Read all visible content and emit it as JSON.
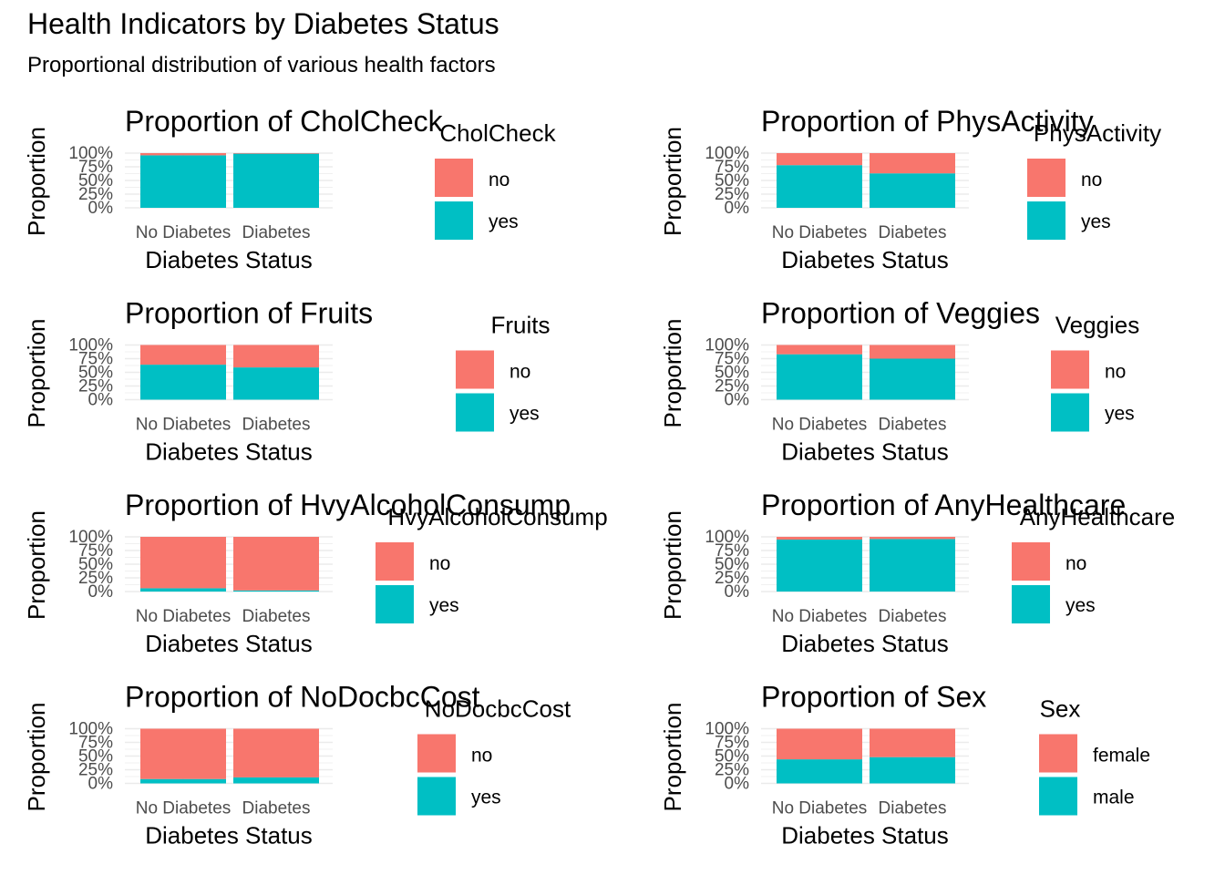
{
  "title": "Health Indicators by Diabetes Status",
  "subtitle": "Proportional distribution of various health factors",
  "colors": {
    "top": "#F8766D",
    "bottom": "#00BFC4",
    "grid": "#EBEBEB"
  },
  "chart_data": [
    {
      "type": "bar",
      "stacked": true,
      "title": "Proportion of CholCheck",
      "xlabel": "Diabetes Status",
      "ylabel": "Proportion",
      "categories": [
        "No Diabetes",
        "Diabetes"
      ],
      "yticks": [
        "0%",
        "25%",
        "50%",
        "75%",
        "100%"
      ],
      "ylim": [
        0,
        1
      ],
      "legend_title": "CholCheck",
      "series": [
        {
          "name": "yes",
          "values": [
            0.96,
            0.99
          ]
        },
        {
          "name": "no",
          "values": [
            0.04,
            0.01
          ]
        }
      ]
    },
    {
      "type": "bar",
      "stacked": true,
      "title": "Proportion of PhysActivity",
      "xlabel": "Diabetes Status",
      "ylabel": "Proportion",
      "categories": [
        "No Diabetes",
        "Diabetes"
      ],
      "yticks": [
        "0%",
        "25%",
        "50%",
        "75%",
        "100%"
      ],
      "ylim": [
        0,
        1
      ],
      "legend_title": "PhysActivity",
      "series": [
        {
          "name": "yes",
          "values": [
            0.78,
            0.63
          ]
        },
        {
          "name": "no",
          "values": [
            0.22,
            0.37
          ]
        }
      ]
    },
    {
      "type": "bar",
      "stacked": true,
      "title": "Proportion of Fruits",
      "xlabel": "Diabetes Status",
      "ylabel": "Proportion",
      "categories": [
        "No Diabetes",
        "Diabetes"
      ],
      "yticks": [
        "0%",
        "25%",
        "50%",
        "75%",
        "100%"
      ],
      "ylim": [
        0,
        1
      ],
      "legend_title": "Fruits",
      "series": [
        {
          "name": "yes",
          "values": [
            0.64,
            0.59
          ]
        },
        {
          "name": "no",
          "values": [
            0.36,
            0.41
          ]
        }
      ]
    },
    {
      "type": "bar",
      "stacked": true,
      "title": "Proportion of Veggies",
      "xlabel": "Diabetes Status",
      "ylabel": "Proportion",
      "categories": [
        "No Diabetes",
        "Diabetes"
      ],
      "yticks": [
        "0%",
        "25%",
        "50%",
        "75%",
        "100%"
      ],
      "ylim": [
        0,
        1
      ],
      "legend_title": "Veggies",
      "series": [
        {
          "name": "yes",
          "values": [
            0.83,
            0.75
          ]
        },
        {
          "name": "no",
          "values": [
            0.17,
            0.25
          ]
        }
      ]
    },
    {
      "type": "bar",
      "stacked": true,
      "title": "Proportion of HvyAlcoholConsump",
      "xlabel": "Diabetes Status",
      "ylabel": "Proportion",
      "categories": [
        "No Diabetes",
        "Diabetes"
      ],
      "yticks": [
        "0%",
        "25%",
        "50%",
        "75%",
        "100%"
      ],
      "ylim": [
        0,
        1
      ],
      "legend_title": "HvyAlcoholConsump",
      "series": [
        {
          "name": "yes",
          "values": [
            0.06,
            0.02
          ]
        },
        {
          "name": "no",
          "values": [
            0.94,
            0.98
          ]
        }
      ]
    },
    {
      "type": "bar",
      "stacked": true,
      "title": "Proportion of AnyHealthcare",
      "xlabel": "Diabetes Status",
      "ylabel": "Proportion",
      "categories": [
        "No Diabetes",
        "Diabetes"
      ],
      "yticks": [
        "0%",
        "25%",
        "50%",
        "75%",
        "100%"
      ],
      "ylim": [
        0,
        1
      ],
      "legend_title": "AnyHealthcare",
      "series": [
        {
          "name": "yes",
          "values": [
            0.95,
            0.96
          ]
        },
        {
          "name": "no",
          "values": [
            0.05,
            0.04
          ]
        }
      ]
    },
    {
      "type": "bar",
      "stacked": true,
      "title": "Proportion of NoDocbcCost",
      "xlabel": "Diabetes Status",
      "ylabel": "Proportion",
      "categories": [
        "No Diabetes",
        "Diabetes"
      ],
      "yticks": [
        "0%",
        "25%",
        "50%",
        "75%",
        "100%"
      ],
      "ylim": [
        0,
        1
      ],
      "legend_title": "NoDocbcCost",
      "series": [
        {
          "name": "yes",
          "values": [
            0.08,
            0.11
          ]
        },
        {
          "name": "no",
          "values": [
            0.92,
            0.89
          ]
        }
      ]
    },
    {
      "type": "bar",
      "stacked": true,
      "title": "Proportion of Sex",
      "xlabel": "Diabetes Status",
      "ylabel": "Proportion",
      "categories": [
        "No Diabetes",
        "Diabetes"
      ],
      "yticks": [
        "0%",
        "25%",
        "50%",
        "75%",
        "100%"
      ],
      "ylim": [
        0,
        1
      ],
      "legend_title": "Sex",
      "series": [
        {
          "name": "male",
          "values": [
            0.44,
            0.48
          ]
        },
        {
          "name": "female",
          "values": [
            0.56,
            0.52
          ]
        }
      ]
    }
  ]
}
